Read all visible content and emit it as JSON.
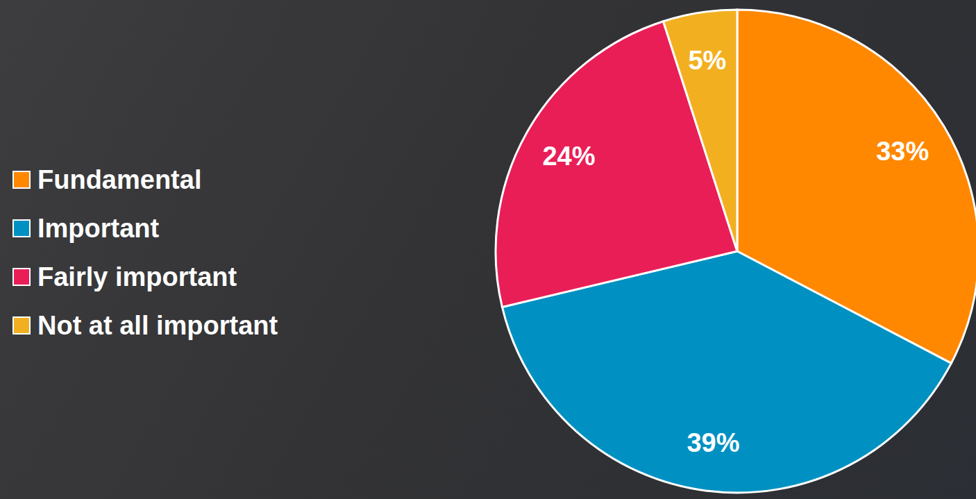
{
  "chart_data": {
    "type": "pie",
    "categories": [
      "Fundamental",
      "Important",
      "Fairly important",
      "Not at all important"
    ],
    "values": [
      33,
      39,
      24,
      5
    ],
    "value_labels": [
      "33%",
      "39%",
      "24%",
      "5%"
    ],
    "colors": [
      "#ff8800",
      "#0091c2",
      "#e91e57",
      "#f2b021"
    ],
    "data_labels": true,
    "legend": "left"
  }
}
